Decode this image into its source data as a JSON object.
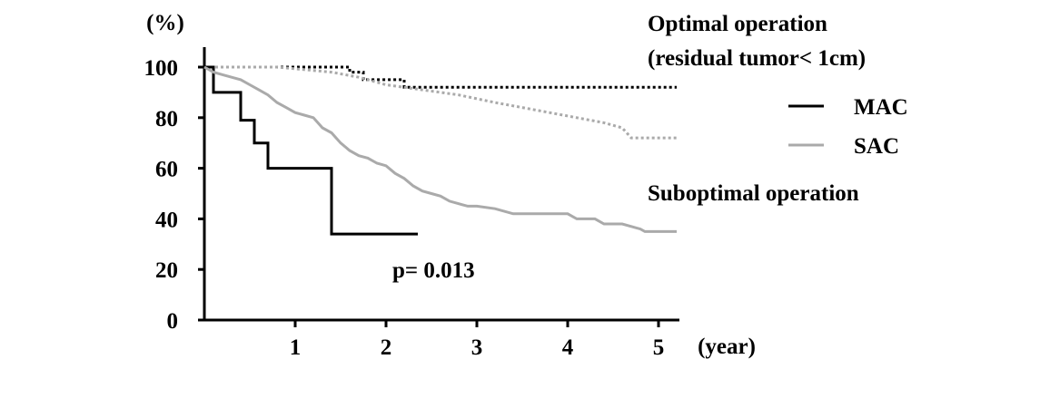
{
  "chart_data": {
    "type": "line",
    "title": "",
    "y_unit_label": "(%)",
    "x_unit_label": "(year)",
    "xlim": [
      0,
      5.2
    ],
    "ylim": [
      0,
      100
    ],
    "x_ticks": [
      1,
      2,
      3,
      4,
      5
    ],
    "y_ticks": [
      0,
      20,
      40,
      60,
      80,
      100
    ],
    "grid": false,
    "legend": {
      "placement": "right",
      "entries": [
        {
          "name": "MAC",
          "color": "#000000"
        },
        {
          "name": "SAC",
          "color": "#aaaaaa"
        }
      ]
    },
    "annotations": {
      "optimal_line1": "Optimal operation",
      "optimal_line2": "(residual tumor< 1cm)",
      "suboptimal": "Suboptimal operation",
      "p_value": "p= 0.013"
    },
    "series": [
      {
        "name": "MAC",
        "group": "Optimal operation",
        "style": "dotted",
        "color": "#000000",
        "points": [
          [
            0,
            100
          ],
          [
            1.6,
            100
          ],
          [
            1.6,
            98
          ],
          [
            1.75,
            98
          ],
          [
            1.75,
            95
          ],
          [
            2.2,
            95
          ],
          [
            2.2,
            92
          ],
          [
            5.2,
            92
          ]
        ]
      },
      {
        "name": "SAC",
        "group": "Optimal operation",
        "style": "dotted",
        "color": "#aaaaaa",
        "points": [
          [
            0,
            100
          ],
          [
            0.8,
            100
          ],
          [
            1.1,
            99
          ],
          [
            1.4,
            98
          ],
          [
            1.7,
            96
          ],
          [
            2.0,
            93
          ],
          [
            2.4,
            91
          ],
          [
            2.8,
            89
          ],
          [
            3.2,
            86
          ],
          [
            3.5,
            84
          ],
          [
            3.8,
            82
          ],
          [
            4.1,
            80
          ],
          [
            4.4,
            78
          ],
          [
            4.6,
            76
          ],
          [
            4.7,
            72
          ],
          [
            5.2,
            72
          ]
        ]
      },
      {
        "name": "MAC",
        "group": "Suboptimal operation",
        "style": "solid",
        "color": "#000000",
        "points": [
          [
            0,
            100
          ],
          [
            0.1,
            100
          ],
          [
            0.1,
            90
          ],
          [
            0.4,
            90
          ],
          [
            0.4,
            79
          ],
          [
            0.55,
            79
          ],
          [
            0.55,
            70
          ],
          [
            0.7,
            70
          ],
          [
            0.7,
            60
          ],
          [
            1.4,
            60
          ],
          [
            1.4,
            34
          ],
          [
            2.35,
            34
          ]
        ]
      },
      {
        "name": "SAC",
        "group": "Suboptimal operation",
        "style": "solid",
        "color": "#aaaaaa",
        "points": [
          [
            0,
            100
          ],
          [
            0.1,
            98
          ],
          [
            0.2,
            97
          ],
          [
            0.3,
            96
          ],
          [
            0.4,
            95
          ],
          [
            0.5,
            93
          ],
          [
            0.6,
            91
          ],
          [
            0.7,
            89
          ],
          [
            0.8,
            86
          ],
          [
            0.9,
            84
          ],
          [
            1.0,
            82
          ],
          [
            1.1,
            81
          ],
          [
            1.2,
            80
          ],
          [
            1.3,
            76
          ],
          [
            1.4,
            74
          ],
          [
            1.5,
            70
          ],
          [
            1.6,
            67
          ],
          [
            1.7,
            65
          ],
          [
            1.8,
            64
          ],
          [
            1.9,
            62
          ],
          [
            2.0,
            61
          ],
          [
            2.1,
            58
          ],
          [
            2.2,
            56
          ],
          [
            2.3,
            53
          ],
          [
            2.4,
            51
          ],
          [
            2.5,
            50
          ],
          [
            2.6,
            49
          ],
          [
            2.7,
            47
          ],
          [
            2.8,
            46
          ],
          [
            2.9,
            45
          ],
          [
            3.0,
            45
          ],
          [
            3.2,
            44
          ],
          [
            3.4,
            42
          ],
          [
            3.6,
            42
          ],
          [
            3.8,
            42
          ],
          [
            4.0,
            42
          ],
          [
            4.1,
            40
          ],
          [
            4.3,
            40
          ],
          [
            4.4,
            38
          ],
          [
            4.6,
            38
          ],
          [
            4.8,
            36
          ],
          [
            4.85,
            35
          ],
          [
            5.2,
            35
          ]
        ]
      }
    ]
  }
}
